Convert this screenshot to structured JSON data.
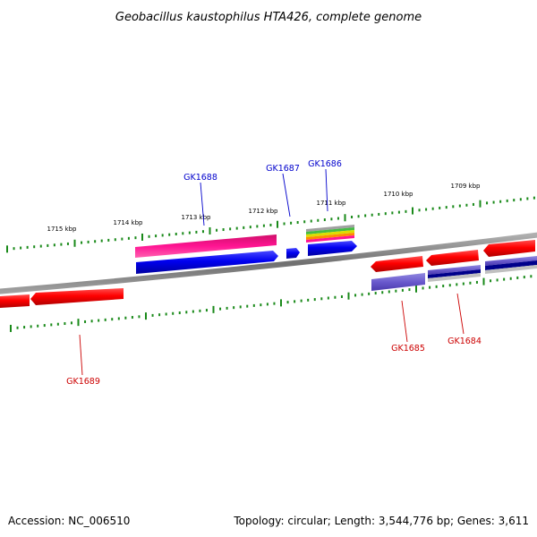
{
  "title": "Geobacillus kaustophilus HTA426, complete genome",
  "footer": {
    "accession": "Accession: NC_006510",
    "summary": "Topology: circular; Length: 3,544,776 bp; Genes: 3,611"
  },
  "colors": {
    "backbone": "#808080",
    "tick": "#1a8a1a",
    "blue_label": "#0000cc",
    "red_label": "#cc0000",
    "red_gene": "#ff0000",
    "blue_gene": "#0000ee",
    "pink_gene": "#ff1493",
    "purple_gene": "#6a5acd",
    "navy_gene": "#00008b"
  },
  "kbp_labels": [
    "1715 kbp",
    "1714 kbp",
    "1713 kbp",
    "1712 kbp",
    "1711 kbp",
    "1710 kbp",
    "1709 kbp"
  ],
  "genes": {
    "GK1688": "GK1688",
    "GK1687": "GK1687",
    "GK1686": "GK1686",
    "GK1689": "GK1689",
    "GK1685": "GK1685",
    "GK1684": "GK1684"
  }
}
